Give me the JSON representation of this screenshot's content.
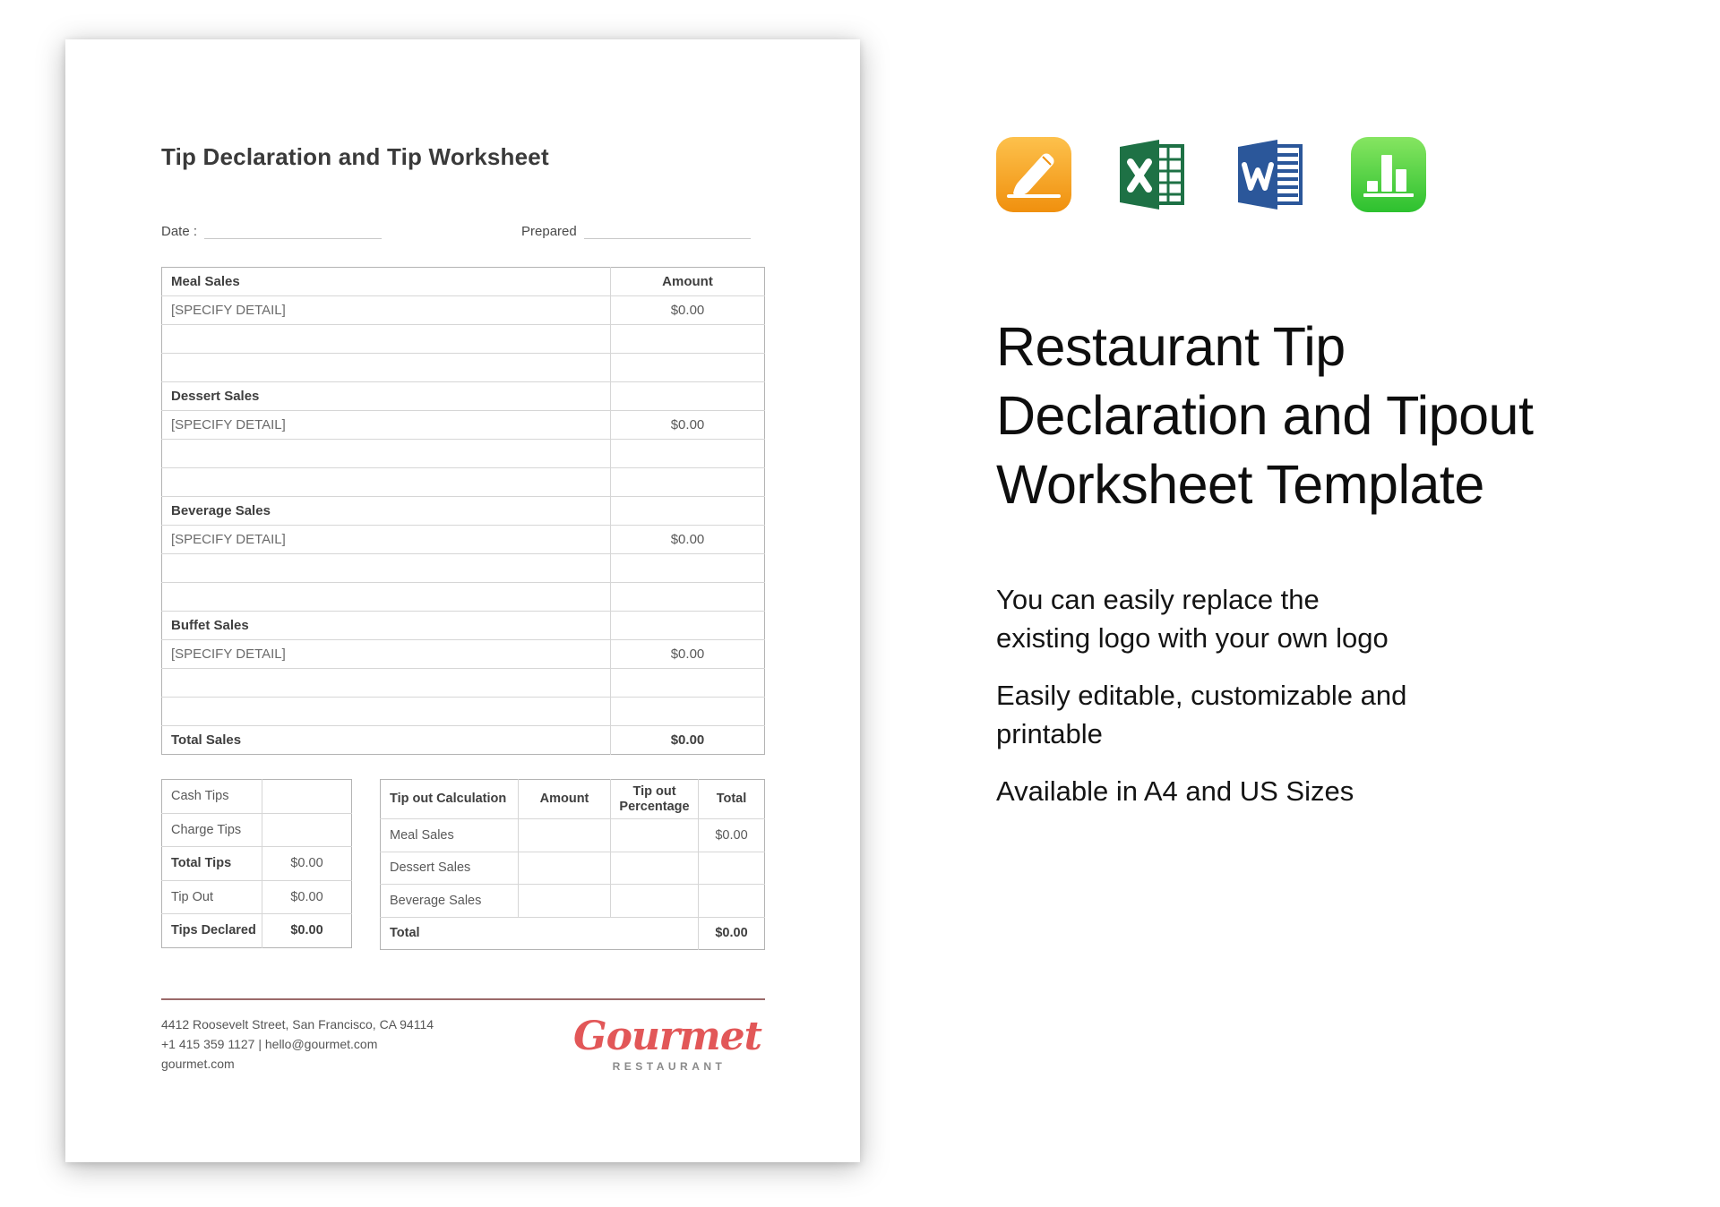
{
  "colors": {
    "rule_color": "#9b6a6a",
    "logo_red": "#e25758",
    "excel_green": "#1e7145",
    "word_blue": "#2b579a",
    "pages_orange_top": "#fdc14c",
    "pages_orange_bottom": "#f0900e",
    "numbers_green_top": "#86e561",
    "numbers_green_bottom": "#2dc12f"
  },
  "document": {
    "title": "Tip Declaration and Tip Worksheet",
    "date_label": "Date :",
    "prepared_label": "Prepared",
    "sales_table": {
      "rows": [
        {
          "label": "Meal Sales",
          "amount": "Amount",
          "style": "header"
        },
        {
          "label": "[SPECIFY DETAIL]",
          "amount": "$0.00",
          "style": "detail"
        },
        {
          "label": "",
          "amount": "",
          "style": "empty"
        },
        {
          "label": "",
          "amount": "",
          "style": "empty"
        },
        {
          "label": "Dessert Sales",
          "amount": "",
          "style": "section"
        },
        {
          "label": "[SPECIFY DETAIL]",
          "amount": "$0.00",
          "style": "detail"
        },
        {
          "label": "",
          "amount": "",
          "style": "empty"
        },
        {
          "label": "",
          "amount": "",
          "style": "empty"
        },
        {
          "label": "Beverage Sales",
          "amount": "",
          "style": "section"
        },
        {
          "label": "[SPECIFY DETAIL]",
          "amount": "$0.00",
          "style": "detail"
        },
        {
          "label": "",
          "amount": "",
          "style": "empty"
        },
        {
          "label": "",
          "amount": "",
          "style": "empty"
        },
        {
          "label": "Buffet Sales",
          "amount": "",
          "style": "section"
        },
        {
          "label": "[SPECIFY DETAIL]",
          "amount": "$0.00",
          "style": "detail"
        },
        {
          "label": "",
          "amount": "",
          "style": "empty"
        },
        {
          "label": "",
          "amount": "",
          "style": "empty"
        },
        {
          "label": "Total Sales",
          "amount": "$0.00",
          "style": "total"
        }
      ]
    },
    "tips_table": {
      "rows": [
        {
          "label": "Cash Tips",
          "value": "",
          "style": "plain"
        },
        {
          "label": "Charge Tips",
          "value": "",
          "style": "plain"
        },
        {
          "label": "Total Tips",
          "value": "$0.00",
          "style": "bold-label"
        },
        {
          "label": "Tip Out",
          "value": "$0.00",
          "style": "plain"
        },
        {
          "label": "Tips Declared",
          "value": "$0.00",
          "style": "bold-all"
        }
      ]
    },
    "tipout_table": {
      "headers": [
        "Tip out Calculation",
        "Amount",
        "Tip out Percentage",
        "Total"
      ],
      "rows": [
        {
          "label": "Meal Sales",
          "amount": "",
          "percentage": "",
          "total": "$0.00"
        },
        {
          "label": "Dessert Sales",
          "amount": "",
          "percentage": "",
          "total": ""
        },
        {
          "label": "Beverage Sales",
          "amount": "",
          "percentage": "",
          "total": ""
        }
      ],
      "total_row": {
        "label": "Total",
        "total": "$0.00"
      }
    },
    "footer": {
      "address": "4412 Roosevelt Street, San Francisco, CA 94114",
      "contact": "+1 415 359 1127 | hello@gourmet.com",
      "website": "gourmet.com",
      "logo_name": "Gourmet",
      "logo_subtitle": "RESTAURANT"
    }
  },
  "promo": {
    "icons": [
      "pages-icon",
      "excel-icon",
      "word-icon",
      "numbers-icon"
    ],
    "heading": "Restaurant Tip Declaration and Tipout Worksheet Template",
    "features": [
      "You can easily replace the existing logo with your own logo",
      "Easily editable, customizable and printable",
      "Available in A4 and US Sizes"
    ]
  }
}
